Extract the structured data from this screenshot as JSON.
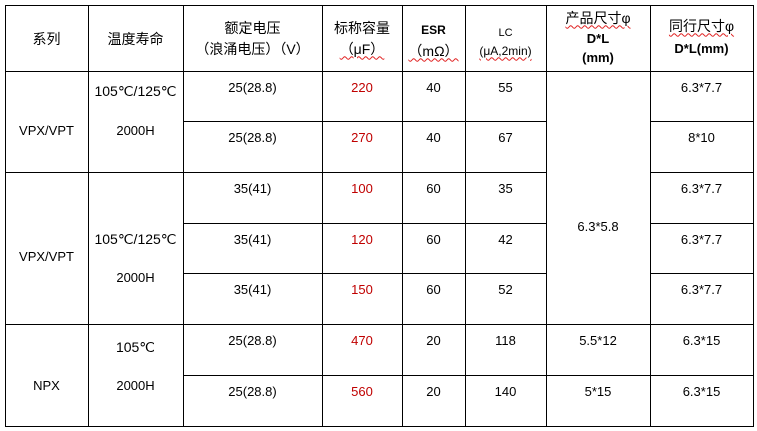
{
  "header": {
    "series": "系列",
    "life": "温度寿命",
    "voltage_1": "额定电压",
    "voltage_2": "（浪涌电压）（V）",
    "cap_1": "标称容量",
    "cap_2": "（μF）",
    "esr_1": "ESR",
    "esr_2": "（mΩ）",
    "lc_1": "LC",
    "lc_2": "(μA,2min)",
    "size_1": "产品尺寸φ",
    "size_2": "D*L",
    "size_3": "(mm)",
    "peer_1": "同行尺寸φ",
    "peer_2": "D*L(mm)"
  },
  "groups": [
    {
      "series": "VPX/VPT",
      "temp": "105℃/125℃",
      "hours": "2000H"
    },
    {
      "series": "VPX/VPT",
      "temp": "105℃/125℃",
      "hours": "2000H"
    },
    {
      "series": "NPX",
      "temp": "105℃",
      "hours": "2000H"
    }
  ],
  "rows": [
    {
      "voltage": "25(28.8)",
      "cap": "220",
      "esr": "40",
      "lc": "55",
      "peer": "6.3*7.7"
    },
    {
      "voltage": "25(28.8)",
      "cap": "270",
      "esr": "40",
      "lc": "67",
      "peer": "8*10"
    },
    {
      "voltage": "35(41)",
      "cap": "100",
      "esr": "60",
      "lc": "35",
      "peer": "6.3*7.7"
    },
    {
      "voltage": "35(41)",
      "cap": "120",
      "esr": "60",
      "lc": "42",
      "peer": "6.3*7.7"
    },
    {
      "voltage": "35(41)",
      "cap": "150",
      "esr": "60",
      "lc": "52",
      "peer": "6.3*7.7"
    },
    {
      "voltage": "25(28.8)",
      "cap": "470",
      "esr": "20",
      "lc": "118",
      "size": "5.5*12",
      "peer": "6.3*15"
    },
    {
      "voltage": "25(28.8)",
      "cap": "560",
      "esr": "20",
      "lc": "140",
      "size": "5*15",
      "peer": "6.3*15"
    }
  ],
  "merged_size": "6.3*5.8",
  "colors": {
    "capacitance_text": "#c00000",
    "border": "#000000"
  }
}
